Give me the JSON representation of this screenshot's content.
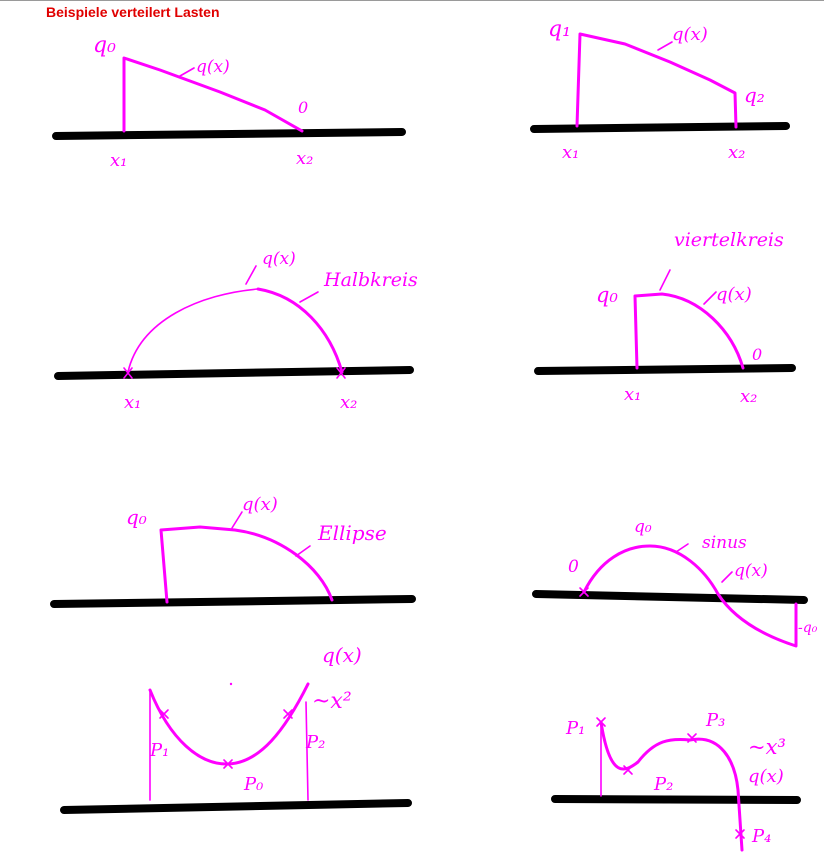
{
  "title": "Beispiele verteilert Lasten",
  "colors": {
    "title": "#e00000",
    "ink": "#ff00ff",
    "beam": "#000000"
  },
  "labels": {
    "d1": {
      "q0": "q₀",
      "qx": "q(x)",
      "zero": "0",
      "x1": "x₁",
      "x2": "x₂"
    },
    "d2": {
      "q1": "q₁",
      "qx": "q(x)",
      "q2": "q₂",
      "x1": "x₁",
      "x2": "x₂"
    },
    "d3": {
      "qx": "q(x)",
      "name": "Halbkreis",
      "x1": "x₁",
      "x2": "x₂"
    },
    "d4": {
      "name": "viertelkreis",
      "q0": "q₀",
      "qx": "q(x)",
      "zero": "0",
      "x1": "x₁",
      "x2": "x₂"
    },
    "d5": {
      "q0": "q₀",
      "qx": "q(x)",
      "name": "Ellipse"
    },
    "d6": {
      "q0": "q₀",
      "name": "sinus",
      "qx": "q(x)",
      "zero": "0",
      "neg": "-q₀"
    },
    "d7": {
      "qx": "q(x)",
      "eq": "~x²",
      "p1": "P₁",
      "p2": "P₂",
      "p0": "P₀"
    },
    "d8": {
      "p1": "P₁",
      "p2": "P₂",
      "p3": "P₃",
      "eq": "~x³",
      "qx": "q(x)",
      "p4": "P₄"
    }
  }
}
